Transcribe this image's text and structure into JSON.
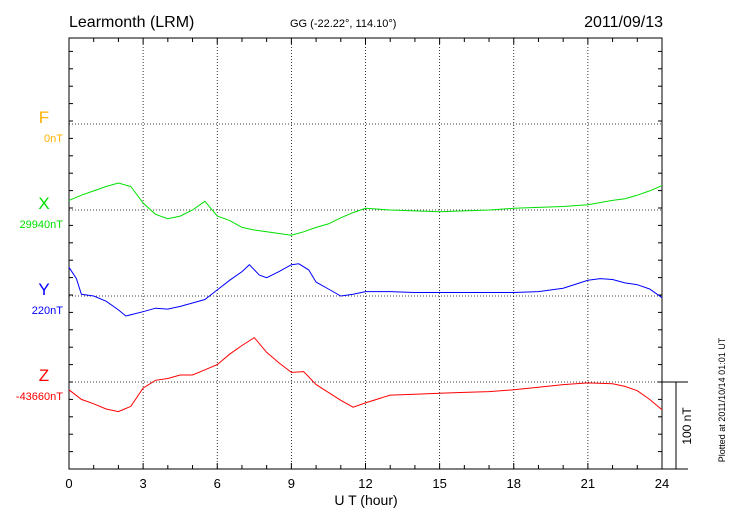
{
  "chart_data": {
    "type": "line",
    "title": "Learmonth (LRM)",
    "subtitle": "GG (-22.22°, 114.10°)",
    "date": "2011/09/13",
    "xlabel": "U T (hour)",
    "xlim": [
      0,
      24
    ],
    "xticks": [
      "0",
      "3",
      "6",
      "9",
      "12",
      "15",
      "18",
      "21",
      "24"
    ],
    "scale_label": "100 nT",
    "scale_nT": 100,
    "plotted_note": "Plotted at 2011/10/14 01:01 UT",
    "grid": true,
    "series": [
      {
        "name": "F",
        "baseline_label": "0nT",
        "baseline": 0,
        "color": "#ffb000",
        "x": [],
        "values": []
      },
      {
        "name": "X",
        "baseline_label": "29940nT",
        "baseline": 29940,
        "color": "#00e000",
        "x": [
          0,
          0.5,
          1,
          1.5,
          2,
          2.5,
          3,
          3.5,
          4,
          4.5,
          5,
          5.5,
          6,
          6.5,
          7,
          7.5,
          8,
          8.5,
          9,
          9.5,
          10,
          10.5,
          11,
          11.5,
          12,
          13,
          14,
          15,
          16,
          17,
          18,
          19,
          20,
          21,
          22,
          22.5,
          23,
          23.5,
          24
        ],
        "values": [
          29951,
          29957,
          29962,
          29967,
          29971,
          29967,
          29948,
          29935,
          29930,
          29933,
          29940,
          29950,
          29933,
          29928,
          29920,
          29917,
          29915,
          29913,
          29911,
          29915,
          29920,
          29924,
          29931,
          29937,
          29942,
          29940,
          29939,
          29938,
          29939,
          29940,
          29942,
          29943,
          29944,
          29946,
          29951,
          29953,
          29957,
          29962,
          29968
        ]
      },
      {
        "name": "Y",
        "baseline_label": "220nT",
        "baseline": 220,
        "color": "#0000ff",
        "x": [
          0,
          0.3,
          0.5,
          1,
          1.5,
          2,
          2.3,
          3,
          3.5,
          4,
          4.5,
          5,
          5.5,
          6,
          6.5,
          7,
          7.3,
          7.7,
          8,
          8.5,
          9,
          9.3,
          9.7,
          10,
          10.5,
          11,
          11.5,
          12,
          13,
          14,
          15,
          16,
          17,
          18,
          19,
          20,
          21,
          21.5,
          22,
          22.5,
          23,
          23.5,
          24
        ],
        "values": [
          253,
          240,
          222,
          220,
          214,
          204,
          197,
          202,
          206,
          205,
          208,
          212,
          216,
          227,
          238,
          248,
          256,
          244,
          241,
          248,
          256,
          257,
          250,
          236,
          228,
          220,
          222,
          225,
          225,
          224,
          224,
          224,
          224,
          224,
          225,
          229,
          238,
          240,
          239,
          235,
          233,
          228,
          218
        ]
      },
      {
        "name": "Z",
        "baseline_label": "-43660nT",
        "baseline": -43660,
        "color": "#ff0000",
        "x": [
          0,
          0.5,
          1,
          1.5,
          2,
          2.5,
          3,
          3.5,
          4,
          4.5,
          5,
          5.5,
          6,
          6.5,
          7,
          7.5,
          8,
          8.5,
          9,
          9.5,
          10,
          10.5,
          11,
          11.5,
          12,
          13,
          14,
          15,
          16,
          17,
          18,
          19,
          20,
          21,
          22,
          22.5,
          23,
          23.5,
          24
        ],
        "values": [
          -43669,
          -43680,
          -43685,
          -43691,
          -43694,
          -43688,
          -43667,
          -43658,
          -43656,
          -43652,
          -43652,
          -43646,
          -43640,
          -43628,
          -43618,
          -43609,
          -43626,
          -43638,
          -43649,
          -43648,
          -43663,
          -43672,
          -43681,
          -43689,
          -43684,
          -43675,
          -43674,
          -43673,
          -43672,
          -43671,
          -43669,
          -43666,
          -43663,
          -43661,
          -43662,
          -43665,
          -43670,
          -43680,
          -43692
        ]
      }
    ]
  }
}
